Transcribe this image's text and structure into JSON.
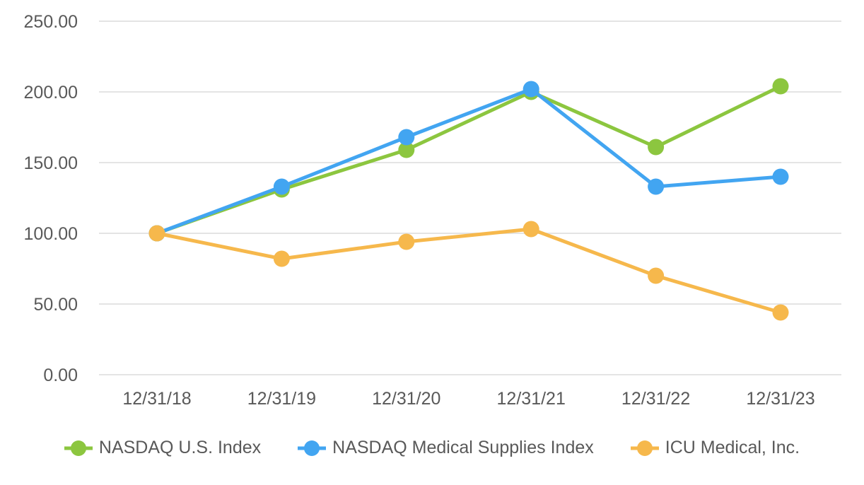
{
  "chart_data": {
    "type": "line",
    "x": [
      "12/31/18",
      "12/31/19",
      "12/31/20",
      "12/31/21",
      "12/31/22",
      "12/31/23"
    ],
    "series": [
      {
        "name": "NASDAQ U.S. Index",
        "color": "#8CC63F",
        "values": [
          100,
          131,
          159,
          200,
          161,
          204
        ]
      },
      {
        "name": "NASDAQ Medical Supplies Index",
        "color": "#42A5F1",
        "values": [
          100,
          133,
          168,
          202,
          133,
          140
        ]
      },
      {
        "name": "ICU Medical, Inc.",
        "color": "#F6B84C",
        "values": [
          100,
          82,
          94,
          103,
          70,
          44
        ]
      }
    ],
    "ylim": [
      0,
      250
    ],
    "yticks": [
      {
        "value": 0,
        "label": "0.00"
      },
      {
        "value": 50,
        "label": "50.00"
      },
      {
        "value": 100,
        "label": "100.00"
      },
      {
        "value": 150,
        "label": "150.00"
      },
      {
        "value": 200,
        "label": "200.00"
      },
      {
        "value": 250,
        "label": "250.00"
      }
    ],
    "grid": true,
    "legend_position": "bottom",
    "axis_text_color": "#595959",
    "gridline_color": "#E4E4E4",
    "marker_style": "circle"
  }
}
